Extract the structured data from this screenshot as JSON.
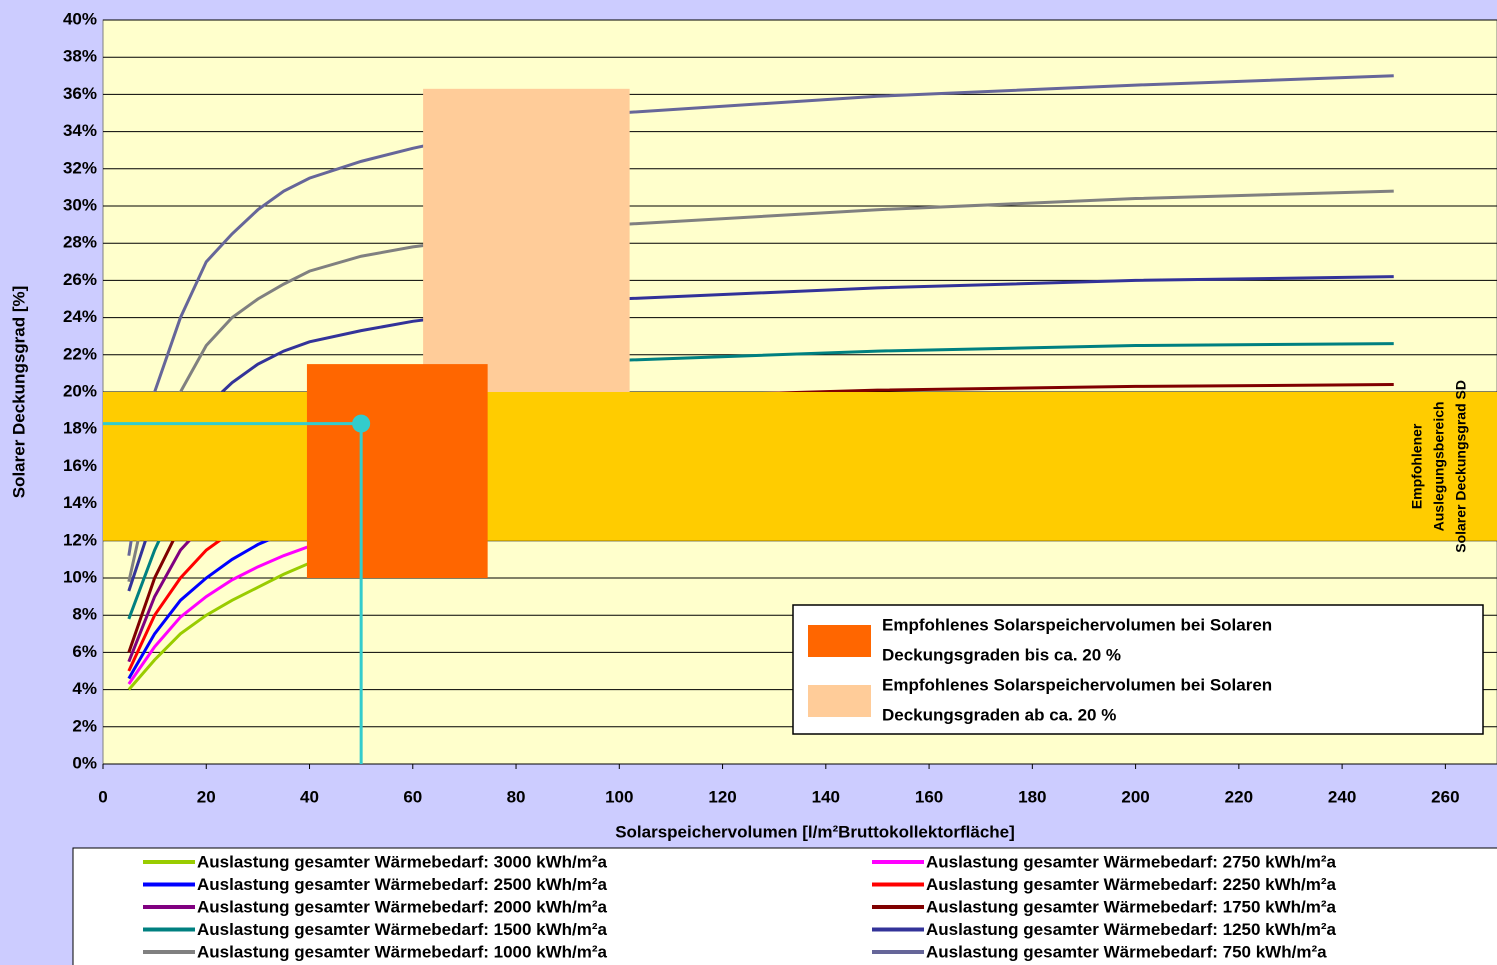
{
  "chart_data": {
    "type": "line",
    "x_label": "Solarspeichervolumen [l/m²Bruttokollektorfläche]",
    "y_label": "Solarer Deckungsgrad [%]",
    "xlim": [
      0,
      270
    ],
    "ylim": [
      0,
      40
    ],
    "xticks": [
      0,
      20,
      40,
      60,
      80,
      100,
      120,
      140,
      160,
      180,
      200,
      220,
      240,
      260
    ],
    "yticks": [
      {
        "value": 0,
        "label": "0%"
      },
      {
        "value": 2,
        "label": "2%"
      },
      {
        "value": 4,
        "label": "4%"
      },
      {
        "value": 6,
        "label": "6%"
      },
      {
        "value": 8,
        "label": "8%"
      },
      {
        "value": 10,
        "label": "10%"
      },
      {
        "value": 12,
        "label": "12%"
      },
      {
        "value": 14,
        "label": "14%"
      },
      {
        "value": 16,
        "label": "16%"
      },
      {
        "value": 18,
        "label": "18%"
      },
      {
        "value": 20,
        "label": "20%"
      },
      {
        "value": 22,
        "label": "22%"
      },
      {
        "value": 24,
        "label": "24%"
      },
      {
        "value": 26,
        "label": "26%"
      },
      {
        "value": 28,
        "label": "28%"
      },
      {
        "value": 30,
        "label": "30%"
      },
      {
        "value": 32,
        "label": "32%"
      },
      {
        "value": 34,
        "label": "34%"
      },
      {
        "value": 36,
        "label": "36%"
      },
      {
        "value": 38,
        "label": "38%"
      },
      {
        "value": 40,
        "label": "40%"
      }
    ],
    "grid": true,
    "x": [
      5,
      10,
      15,
      20,
      25,
      30,
      35,
      40,
      50,
      60,
      80,
      100,
      150,
      200,
      250
    ],
    "series": [
      {
        "name": "Auslastung gesamter Wärmebedarf: 3000 kWh/m²a",
        "color": "#99cc00",
        "values": [
          4.0,
          5.6,
          7,
          8,
          8.8,
          9.5,
          10.2,
          10.8,
          11.5,
          12,
          12.5,
          12.8,
          13.2,
          13.4,
          13.5
        ]
      },
      {
        "name": "Auslastung gesamter Wärmebedarf: 2750 kWh/m²a",
        "color": "#ff00ff",
        "values": [
          4.3,
          6.3,
          7.9,
          9,
          9.9,
          10.6,
          11.2,
          11.7,
          12.3,
          12.7,
          13.2,
          13.5,
          13.9,
          14.1,
          14.2
        ]
      },
      {
        "name": "Auslastung gesamter Wärmebedarf: 2500 kWh/m²a",
        "color": "#0000ff",
        "values": [
          4.6,
          7,
          8.8,
          10,
          11,
          11.8,
          12.4,
          12.9,
          13.5,
          13.9,
          14.4,
          14.7,
          15.1,
          15.3,
          15.4
        ]
      },
      {
        "name": "Auslastung gesamter Wärmebedarf: 2250 kWh/m²a",
        "color": "#ff0000",
        "values": [
          5.0,
          8,
          10,
          11.5,
          12.5,
          13.3,
          13.9,
          14.4,
          15,
          15.4,
          15.9,
          16.2,
          16.6,
          16.8,
          16.9
        ]
      },
      {
        "name": "Auslastung gesamter Wärmebedarf: 2000 kWh/m²a",
        "color": "#800080",
        "values": [
          5.5,
          9,
          11.5,
          13,
          14.2,
          15,
          15.6,
          16.1,
          16.7,
          17.1,
          17.6,
          17.9,
          18.3,
          18.5,
          18.6
        ]
      },
      {
        "name": "Auslastung gesamter Wärmebedarf: 1750 kWh/m²a",
        "color": "#800000",
        "values": [
          6.0,
          10,
          12.8,
          14.6,
          15.8,
          16.7,
          17.3,
          17.8,
          18.5,
          18.9,
          19.4,
          19.7,
          20.1,
          20.3,
          20.4
        ]
      },
      {
        "name": "Auslastung gesamter Wärmebedarf: 1500 kWh/m²a",
        "color": "#008080",
        "values": [
          7.8,
          11.5,
          14.5,
          16.5,
          17.8,
          18.7,
          19.3,
          19.8,
          20.4,
          20.8,
          21.3,
          21.7,
          22.2,
          22.5,
          22.6
        ]
      },
      {
        "name": "Auslastung gesamter Wärmebedarf: 1250 kWh/m²a",
        "color": "#333399",
        "values": [
          9.3,
          13.5,
          17,
          19.2,
          20.5,
          21.5,
          22.2,
          22.7,
          23.3,
          23.8,
          24.5,
          25,
          25.6,
          26,
          26.2
        ]
      },
      {
        "name": "Auslastung gesamter Wärmebedarf: 1000 kWh/m²a",
        "color": "#808080",
        "values": [
          9.8,
          16,
          20,
          22.5,
          24,
          25,
          25.8,
          26.5,
          27.3,
          27.8,
          28.5,
          29,
          29.8,
          30.4,
          30.8
        ]
      },
      {
        "name": "Auslastung gesamter Wärmebedarf: 750 kWh/m²a",
        "color": "#666699",
        "values": [
          11.2,
          20,
          24,
          27,
          28.5,
          29.8,
          30.8,
          31.5,
          32.4,
          33.1,
          34.3,
          35,
          35.9,
          36.5,
          37.0
        ]
      }
    ],
    "regions": [
      {
        "x": [
          0,
          270
        ],
        "y": [
          12,
          20
        ],
        "color": "#ffcc00"
      },
      {
        "x": [
          39.5,
          74.5
        ],
        "y": [
          10,
          21.5
        ],
        "color": "#ff6600"
      },
      {
        "x": [
          62,
          102
        ],
        "y": [
          20,
          36.3
        ],
        "color": "#ffcc99"
      }
    ],
    "band_label": [
      "Empfohlener",
      "Auslegungsbereich",
      "Solarer Deckungsgrad SD"
    ],
    "marker": {
      "x": 50,
      "y": 18.3,
      "color": "#33cccc"
    },
    "box_legend": [
      {
        "color": "#ff6600",
        "lines": [
          "Empfohlenes Solarspeichervolumen bei Solaren",
          "Deckungsgraden bis ca. 20 %"
        ]
      },
      {
        "color": "#ffcc99",
        "lines": [
          "Empfohlenes Solarspeichervolumen bei Solaren",
          "Deckungsgraden ab ca. 20 %"
        ]
      }
    ]
  }
}
